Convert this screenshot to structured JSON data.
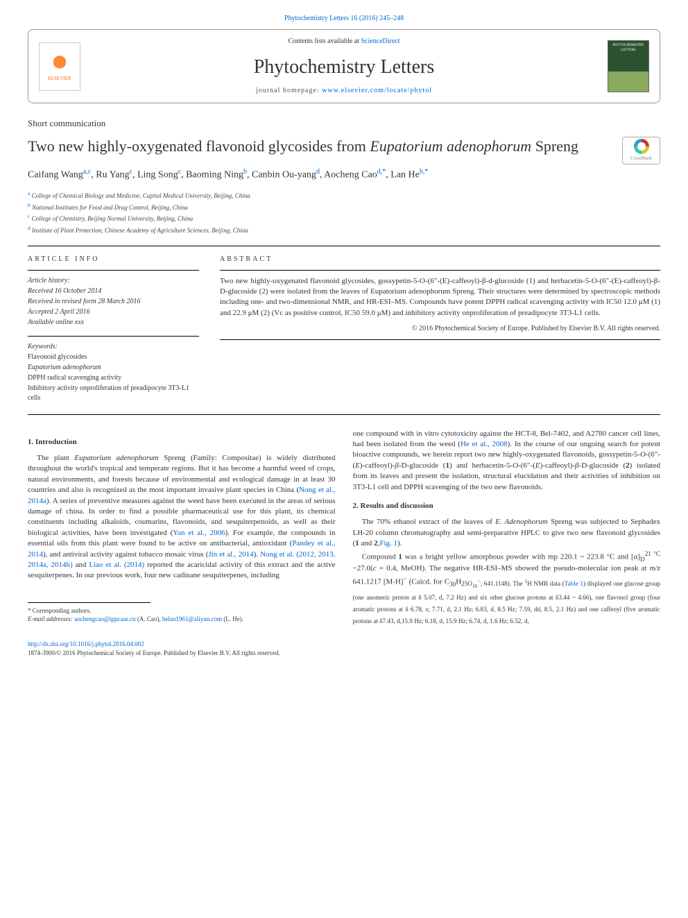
{
  "journal_ref": "Phytochemistry Letters 16 (2016) 245–248",
  "header": {
    "contents_prefix": "Contents lists available at ",
    "contents_link": "ScienceDirect",
    "journal_title": "Phytochemistry Letters",
    "homepage_prefix": "journal homepage: ",
    "homepage_link": "www.elsevier.com/locate/phytol",
    "elsevier_text": "ELSEVIER",
    "cover_text": "PHYTOCHEMISTRY LETTERS"
  },
  "article_type": "Short communication",
  "title_pre": "Two new highly-oxygenated flavonoid glycosides from ",
  "title_em": "Eupatorium adenophorum",
  "title_post": " Spreng",
  "crossmark_label": "CrossMark",
  "authors_html": "Caifang Wang<sup>a,c</sup>, Ru Yang<sup>c</sup>, Ling Song<sup>c</sup>, Baoming Ning<sup>b</sup>, Canbin Ou-yang<sup>d</sup>, Aocheng Cao<sup>d,*</sup>, Lan He<sup>b,*</sup>",
  "affiliations": [
    {
      "sup": "a",
      "text": "College of Chemical Biology and Medicine, Capital Medical University, Beijing, China"
    },
    {
      "sup": "b",
      "text": "National Institutes for Food and Drug Control, Beijing, China"
    },
    {
      "sup": "c",
      "text": "College of Chemistry, Beijing Normal University, Beijing, China"
    },
    {
      "sup": "d",
      "text": "Institute of Plant Protection, Chinese Academy of Agriculture Sciences, Beijing, China"
    }
  ],
  "info_header": "ARTICLE INFO",
  "history_label": "Article history:",
  "history": [
    "Received 16 October 2014",
    "Received in revised form 28 March 2016",
    "Accepted 2 April 2016",
    "Available online xxx"
  ],
  "keywords_label": "Keywords:",
  "keywords": [
    "Flavonoid glycosides",
    "Eupatorium adenophorum",
    "DPPH radical scavenging activity",
    "Inhibitory activity onproliferation of preadipocyte 3T3-L1 cells"
  ],
  "abstract_header": "ABSTRACT",
  "abstract_text": "Two new highly-oxygenated flavonoid glycosides, gossypetin-5-O-(6″-(E)-caffeoyl)-β-d-glucoside (1) and herbacetin-5-O-(6″-(E)-caffeoyl)-β-D-glucoside (2) were isolated from the leaves of Eupatorium adenophorum Spreng. Their structures were determined by spectroscopic methods including one- and two-dimensional NMR, and HR-ESI–MS. Compounds have potent DPPH radical scavenging activity with IC50 12.0 μM (1) and 22.9 μM (2) (Vc as positive control, IC50 59.0 μM) and inhibitory activity onproliferation of preadipocyte 3T3-L1 cells.",
  "abstract_copyright": "© 2016 Phytochemical Society of Europe. Published by Elsevier B.V. All rights reserved.",
  "sections": {
    "s1_heading": "1. Introduction",
    "s1_p1": "The plant <em>Eupatorium adenophorum</em> Spreng (Family: Compositae) is widely distributed throughout the world's tropical and temperate regions. But it has become a harmful weed of crops, natural environments, and forests because of environmental and ecological damage in at least 30 countries and also is recognized as the most important invasive plant species in China (<a href='#'>Nong et al., 2014a</a>). A series of preventive measures against the weed have been executed in the areas of serious damage of china. In order to find a possible pharmaceutical use for this plant, its chemical constituents including alkaloids, coumarins, flavonoids, and sesquiterpenoids, as well as their biological activities, have been investigated (<a href='#'>Yan et al., 2006</a>). For example, the compounds in essential oils from this plant were found to be active on antibacterial, antioxidant (<a href='#'>Pandey et al., 2014</a>), and antiviral activity against tobacco mosaic virus (<a href='#'>Jin et al., 2014</a>). <a href='#'>Nong et al. (2012, 2013, 2014a, 2014b)</a> and <a href='#'>Liao et al. (2014)</a> reported the acaricidal activity of this extract and the active sesquiterpenes. In our previous work, four new cadinane sesquiterpenes, including",
    "s1_p2": "one compound with in vitro cytotoxicity against the HCT-8, Bel-7402, and A2780 cancer cell lines, had been isolated from the weed (<a href='#'>He et al., 2008</a>). In the course of our ongoing search for potent bioactive compounds, we herein report two new highly-oxygenated flavonoids, gossypetin-5-<em>O</em>-(6″-(<em>E</em>)-caffeoyl)-<em>β</em>-D-glucoside (<strong>1</strong>) and herbacetin-5-<em>O</em>-(6″-(<em>E</em>)-caffeoyl)-<em>β</em>-D-glucoside (<strong>2</strong>) isolated from its leaves and present the isolation, structural elucidation and their activities of inhibition on 3T3-L1 cell and DPPH scavenging of the two new flavonoids.",
    "s2_heading": "2. Results and discussion",
    "s2_p1": "The 70% ethanol extract of the leaves of <em>E. Adenophorum</em> Spreng was subjected to Sephadex LH-20 column chromatography and semi-preparative HPLC to give two new flavonoid glycosides (<strong>1</strong> and <strong>2</strong>,<a href='#'>Fig. 1</a>).",
    "s2_p2": "Compound <strong>1</strong> was a bright yellow amorphous powder with mp 220.1 ~ 223.8 °C and [α]<sub>D</sub><sup>21 °C</sup> −27.0(<em>c</em> = 0.4, MeOH). The negative HR-ESI–MS showed the pseudo-molecular ion peak at <em>m/z</em> 641.1217 [M-H]<sup>−</sup> (Calcd. for C<sub>30</sub>H<sub>25</</sub>O<sub>16</sub><sup>−</sup>, 641.1148). The <sup>1</sup>H NMR data (<a href='#'>Table 1</a>) displayed one glucose group (one anomeric proton at δ 5.07, d, 7.2 Hz) and six other glucose protons at δ3.44 ~ 4.66), one flavonol group (four aromatic protons at δ 6.78, s; 7.71, d, 2.1 Hz; 6.83, d, 8.5 Hz; 7.59, dd, 8.5, 2.1 Hz) and one caffeoyl (five aromatic protons at δ7.43, d,15.9 Hz; 6.18, d, 15.9 Hz; 6.74, d, 1.6 Hz; 6.52, d,"
  },
  "footnotes": {
    "corr_label": "* Corresponding authors.",
    "email_label": "E-mail addresses:",
    "email1": "aochengcao@ippcaas.cn",
    "email1_who": " (A. Cao), ",
    "email2": "helan1961@aliyun.com",
    "email2_who": " (L. He)."
  },
  "footer": {
    "doi": "http://dx.doi.org/10.1016/j.phytol.2016.04.002",
    "issn_line": "1874-3900/© 2016 Phytochemical Society of Europe. Published by Elsevier B.V. All rights reserved."
  },
  "colors": {
    "link": "#0066cc",
    "elsevier_orange": "#ff6600",
    "cover_green": "#2a5230"
  }
}
